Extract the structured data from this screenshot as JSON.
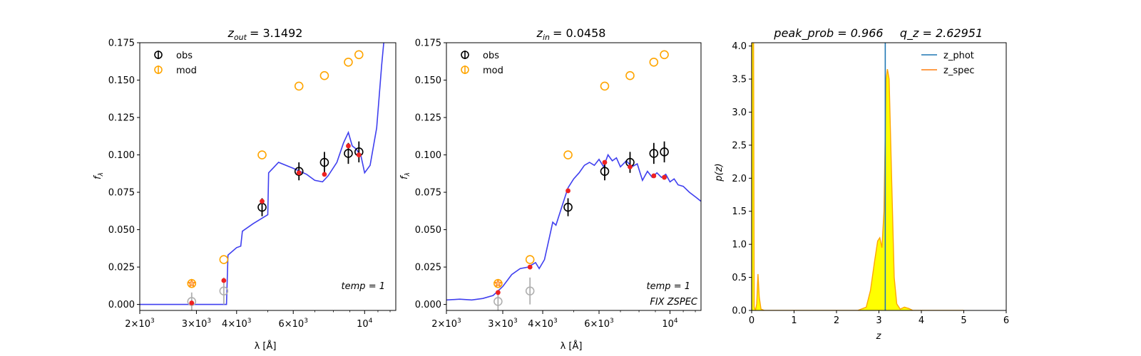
{
  "chart_data": [
    {
      "type": "scatter",
      "title_var": "z",
      "title_sub": "out",
      "title_value": "= 3.1492",
      "xlabel": "λ [Å]",
      "ylabel": "f",
      "ylabel_sub": "λ",
      "x_scale": "log",
      "xlim": [
        2000,
        12500
      ],
      "ylim": [
        -0.004,
        0.175
      ],
      "yticks": [
        "0.000",
        "0.025",
        "0.050",
        "0.075",
        "0.100",
        "0.125",
        "0.150",
        "0.175"
      ],
      "ytick_values": [
        0,
        0.025,
        0.05,
        0.075,
        0.1,
        0.125,
        0.15,
        0.175
      ],
      "xticks": [
        {
          "value": 2000,
          "base": "2×10",
          "exp": "3"
        },
        {
          "value": 3000,
          "base": "3×10",
          "exp": "3"
        },
        {
          "value": 4000,
          "base": "4×10",
          "exp": "3"
        },
        {
          "value": 6000,
          "base": "6×10",
          "exp": "3"
        },
        {
          "value": 10000,
          "base": "10",
          "exp": "4"
        }
      ],
      "legend": [
        {
          "name": "obs",
          "color": "#000000"
        },
        {
          "name": "mod",
          "color": "#ffa500"
        }
      ],
      "legend_position": "top-left",
      "obs": [
        {
          "x": 4800,
          "y": 0.065,
          "err": 0.006
        },
        {
          "x": 6250,
          "y": 0.089,
          "err": 0.006
        },
        {
          "x": 7500,
          "y": 0.095,
          "err": 0.007
        },
        {
          "x": 8900,
          "y": 0.101,
          "err": 0.007
        },
        {
          "x": 9600,
          "y": 0.102,
          "err": 0.007
        }
      ],
      "obs_faint": [
        {
          "x": 2900,
          "y": 0.002,
          "err": 0.006
        },
        {
          "x": 3650,
          "y": 0.009,
          "err": 0.009
        }
      ],
      "mod": [
        {
          "x": 2900,
          "y": 0.014
        },
        {
          "x": 3650,
          "y": 0.03
        },
        {
          "x": 4800,
          "y": 0.1
        },
        {
          "x": 6250,
          "y": 0.146
        },
        {
          "x": 7500,
          "y": 0.153
        },
        {
          "x": 8900,
          "y": 0.162
        },
        {
          "x": 9600,
          "y": 0.167
        }
      ],
      "red_points": [
        {
          "x": 2900,
          "y": 0.001
        },
        {
          "x": 3650,
          "y": 0.016
        },
        {
          "x": 4800,
          "y": 0.069
        },
        {
          "x": 6250,
          "y": 0.088
        },
        {
          "x": 7500,
          "y": 0.087
        },
        {
          "x": 8900,
          "y": 0.106
        },
        {
          "x": 9600,
          "y": 0.1
        }
      ],
      "star": {
        "x": 2900,
        "y": 0.014
      },
      "model_curve": [
        [
          2000,
          0.0
        ],
        [
          3720,
          0.0
        ],
        [
          3760,
          0.033
        ],
        [
          4000,
          0.038
        ],
        [
          4120,
          0.039
        ],
        [
          4170,
          0.049
        ],
        [
          4500,
          0.054
        ],
        [
          5000,
          0.06
        ],
        [
          5030,
          0.088
        ],
        [
          5400,
          0.095
        ],
        [
          6000,
          0.091
        ],
        [
          6600,
          0.087
        ],
        [
          7000,
          0.083
        ],
        [
          7400,
          0.082
        ],
        [
          7700,
          0.086
        ],
        [
          8200,
          0.095
        ],
        [
          8600,
          0.108
        ],
        [
          8900,
          0.115
        ],
        [
          9150,
          0.106
        ],
        [
          9400,
          0.104
        ],
        [
          9750,
          0.099
        ],
        [
          10000,
          0.088
        ],
        [
          10400,
          0.093
        ],
        [
          10900,
          0.118
        ],
        [
          11300,
          0.16
        ],
        [
          11500,
          0.178
        ]
      ],
      "annotations": [
        "temp = 1"
      ]
    },
    {
      "type": "scatter",
      "title_var": "z",
      "title_sub": "in",
      "title_value": "= 0.0458",
      "xlabel": "λ [Å]",
      "ylabel": "f",
      "ylabel_sub": "λ",
      "x_scale": "log",
      "xlim": [
        2000,
        12500
      ],
      "ylim": [
        -0.004,
        0.175
      ],
      "yticks": [
        "0.000",
        "0.025",
        "0.050",
        "0.075",
        "0.100",
        "0.125",
        "0.150",
        "0.175"
      ],
      "ytick_values": [
        0,
        0.025,
        0.05,
        0.075,
        0.1,
        0.125,
        0.15,
        0.175
      ],
      "xticks": [
        {
          "value": 2000,
          "base": "2×10",
          "exp": "3"
        },
        {
          "value": 3000,
          "base": "3×10",
          "exp": "3"
        },
        {
          "value": 4000,
          "base": "4×10",
          "exp": "3"
        },
        {
          "value": 6000,
          "base": "6×10",
          "exp": "3"
        },
        {
          "value": 10000,
          "base": "10",
          "exp": "4"
        }
      ],
      "legend": [
        {
          "name": "obs",
          "color": "#000000"
        },
        {
          "name": "mod",
          "color": "#ffa500"
        }
      ],
      "legend_position": "top-left",
      "obs": [
        {
          "x": 4800,
          "y": 0.065,
          "err": 0.006
        },
        {
          "x": 6250,
          "y": 0.089,
          "err": 0.006
        },
        {
          "x": 7500,
          "y": 0.095,
          "err": 0.007
        },
        {
          "x": 8900,
          "y": 0.101,
          "err": 0.007
        },
        {
          "x": 9600,
          "y": 0.102,
          "err": 0.007
        }
      ],
      "obs_faint": [
        {
          "x": 2900,
          "y": 0.002,
          "err": 0.006
        },
        {
          "x": 3650,
          "y": 0.009,
          "err": 0.009
        }
      ],
      "mod": [
        {
          "x": 2900,
          "y": 0.014
        },
        {
          "x": 3650,
          "y": 0.03
        },
        {
          "x": 4800,
          "y": 0.1
        },
        {
          "x": 6250,
          "y": 0.146
        },
        {
          "x": 7500,
          "y": 0.153
        },
        {
          "x": 8900,
          "y": 0.162
        },
        {
          "x": 9600,
          "y": 0.167
        }
      ],
      "red_points": [
        {
          "x": 2900,
          "y": 0.008
        },
        {
          "x": 3650,
          "y": 0.025
        },
        {
          "x": 4800,
          "y": 0.076
        },
        {
          "x": 6250,
          "y": 0.095
        },
        {
          "x": 7500,
          "y": 0.092
        },
        {
          "x": 8900,
          "y": 0.086
        },
        {
          "x": 9600,
          "y": 0.085
        }
      ],
      "star": {
        "x": 2900,
        "y": 0.014
      },
      "model_curve": [
        [
          2000,
          0.003
        ],
        [
          2200,
          0.0035
        ],
        [
          2400,
          0.003
        ],
        [
          2600,
          0.004
        ],
        [
          2800,
          0.006
        ],
        [
          3000,
          0.012
        ],
        [
          3200,
          0.02
        ],
        [
          3400,
          0.024
        ],
        [
          3600,
          0.025
        ],
        [
          3800,
          0.028
        ],
        [
          3900,
          0.024
        ],
        [
          4050,
          0.03
        ],
        [
          4200,
          0.045
        ],
        [
          4300,
          0.055
        ],
        [
          4400,
          0.053
        ],
        [
          4600,
          0.066
        ],
        [
          4800,
          0.078
        ],
        [
          5000,
          0.084
        ],
        [
          5200,
          0.088
        ],
        [
          5400,
          0.093
        ],
        [
          5600,
          0.095
        ],
        [
          5800,
          0.093
        ],
        [
          6000,
          0.097
        ],
        [
          6200,
          0.092
        ],
        [
          6400,
          0.1
        ],
        [
          6600,
          0.096
        ],
        [
          6800,
          0.098
        ],
        [
          7000,
          0.092
        ],
        [
          7300,
          0.096
        ],
        [
          7600,
          0.092
        ],
        [
          7900,
          0.094
        ],
        [
          8200,
          0.083
        ],
        [
          8500,
          0.089
        ],
        [
          8800,
          0.085
        ],
        [
          9100,
          0.088
        ],
        [
          9400,
          0.085
        ],
        [
          9700,
          0.087
        ],
        [
          10000,
          0.082
        ],
        [
          10300,
          0.084
        ],
        [
          10600,
          0.08
        ],
        [
          11000,
          0.079
        ],
        [
          11500,
          0.075
        ],
        [
          12000,
          0.072
        ],
        [
          12500,
          0.069
        ]
      ],
      "annotations": [
        "temp = 1",
        "FIX ZSPEC"
      ]
    },
    {
      "type": "line",
      "title_parts": [
        "peak_prob = 0.966",
        "q_z = 2.62951"
      ],
      "xlabel": "z",
      "ylabel": "p(z)",
      "xlim": [
        0,
        6
      ],
      "ylim": [
        0,
        4.05
      ],
      "xticks": [
        "0",
        "1",
        "2",
        "3",
        "4",
        "5",
        "6"
      ],
      "xtick_values": [
        0,
        1,
        2,
        3,
        4,
        5,
        6
      ],
      "yticks": [
        "0.0",
        "0.5",
        "1.0",
        "1.5",
        "2.0",
        "2.5",
        "3.0",
        "3.5",
        "4.0"
      ],
      "ytick_values": [
        0,
        0.5,
        1,
        1.5,
        2,
        2.5,
        3,
        3.5,
        4
      ],
      "legend": [
        {
          "name": "z_phot",
          "color": "#1f77b4"
        },
        {
          "name": "z_spec",
          "color": "#ff7f0e"
        }
      ],
      "legend_position": "top-right",
      "z_phot": 3.1492,
      "z_spec_curve": [
        [
          0.0,
          0
        ],
        [
          0.005,
          4.05
        ],
        [
          0.045,
          4.05
        ],
        [
          0.06,
          0.05
        ],
        [
          0.09,
          0
        ],
        [
          0.12,
          0.1
        ],
        [
          0.15,
          0.55
        ],
        [
          0.18,
          0.2
        ],
        [
          0.22,
          0.02
        ],
        [
          0.3,
          0
        ],
        [
          1.0,
          0
        ],
        [
          2.0,
          0
        ],
        [
          2.5,
          0
        ],
        [
          2.7,
          0.05
        ],
        [
          2.8,
          0.3
        ],
        [
          2.9,
          0.75
        ],
        [
          2.97,
          1.05
        ],
        [
          3.02,
          1.1
        ],
        [
          3.07,
          0.95
        ],
        [
          3.12,
          1.5
        ],
        [
          3.17,
          3.5
        ],
        [
          3.2,
          3.65
        ],
        [
          3.24,
          3.5
        ],
        [
          3.3,
          2.0
        ],
        [
          3.36,
          0.5
        ],
        [
          3.42,
          0.1
        ],
        [
          3.5,
          0.02
        ],
        [
          3.6,
          0.05
        ],
        [
          3.7,
          0.03
        ],
        [
          3.8,
          0
        ],
        [
          5.0,
          0
        ]
      ],
      "fill_color": "#ffff00",
      "curve_color": "#ffa500",
      "phot_color": "#1f77b4"
    }
  ]
}
